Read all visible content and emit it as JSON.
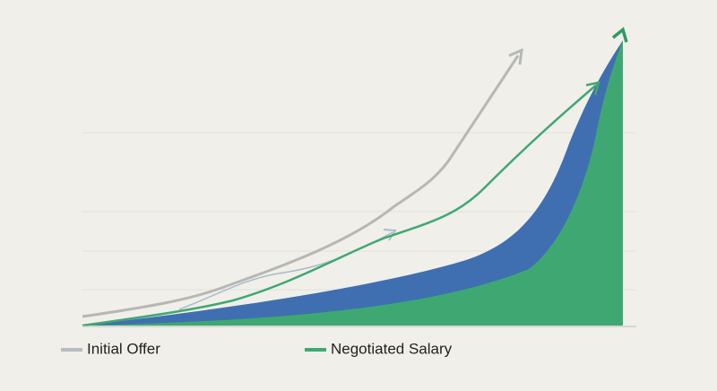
{
  "legend": {
    "items": [
      "Initial Offer",
      "Negotiated Salary"
    ]
  }
}
